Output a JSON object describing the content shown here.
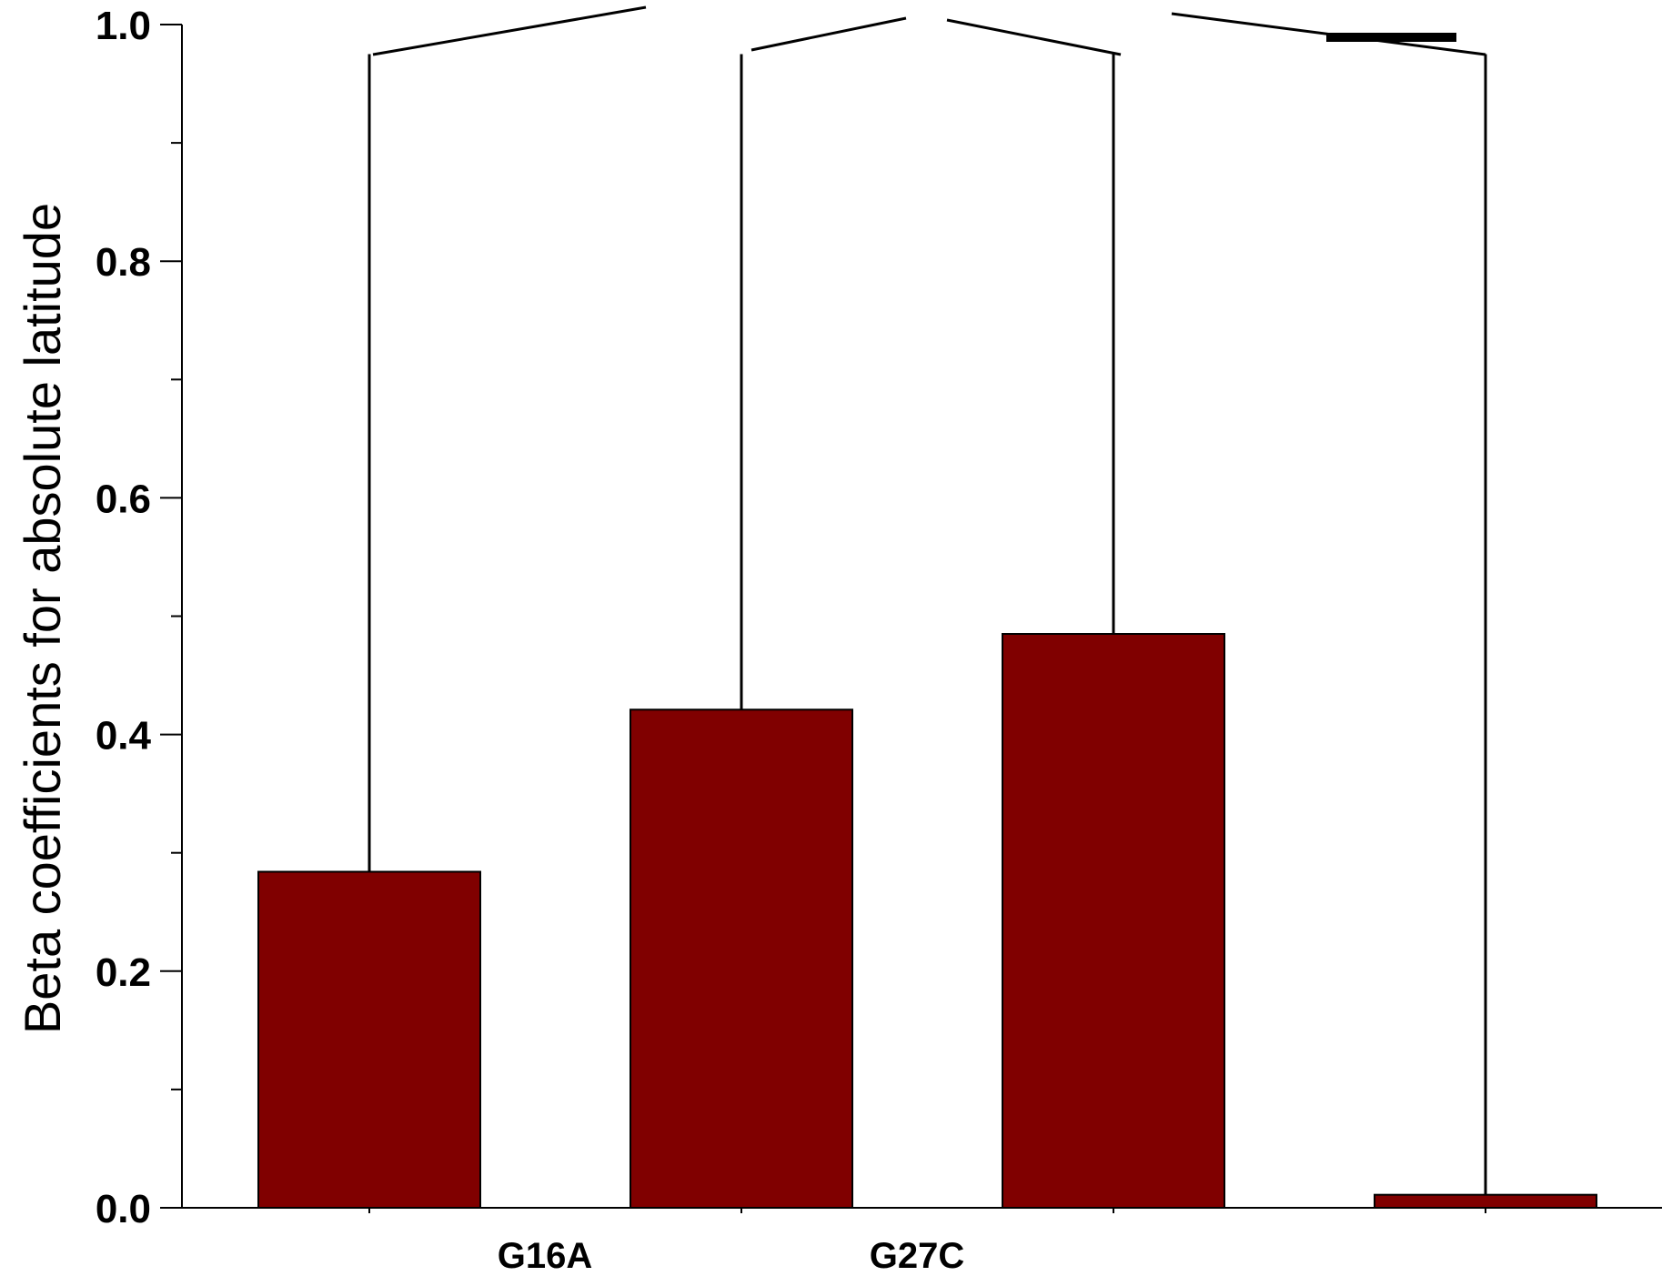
{
  "chart_data": {
    "type": "bar",
    "title": "",
    "xlabel": "",
    "ylabel": "Beta coefficients for absolute latitude",
    "ylim": [
      0,
      1.0
    ],
    "yticks": [
      0.0,
      0.2,
      0.4,
      0.6,
      0.8,
      1.0
    ],
    "ytick_labels": [
      "0.0",
      "0.2",
      "0.4",
      "0.6",
      "0.8",
      "1.0"
    ],
    "y_minor_step": 0.1,
    "categories": [
      "",
      "G16A",
      "G27C",
      ""
    ],
    "values": [
      0.284,
      0.421,
      0.485,
      0.011
    ],
    "error_upper": [
      0.975,
      0.975,
      0.975,
      0.975
    ],
    "bar_color": "#800000",
    "grid": false,
    "legend": "none"
  }
}
